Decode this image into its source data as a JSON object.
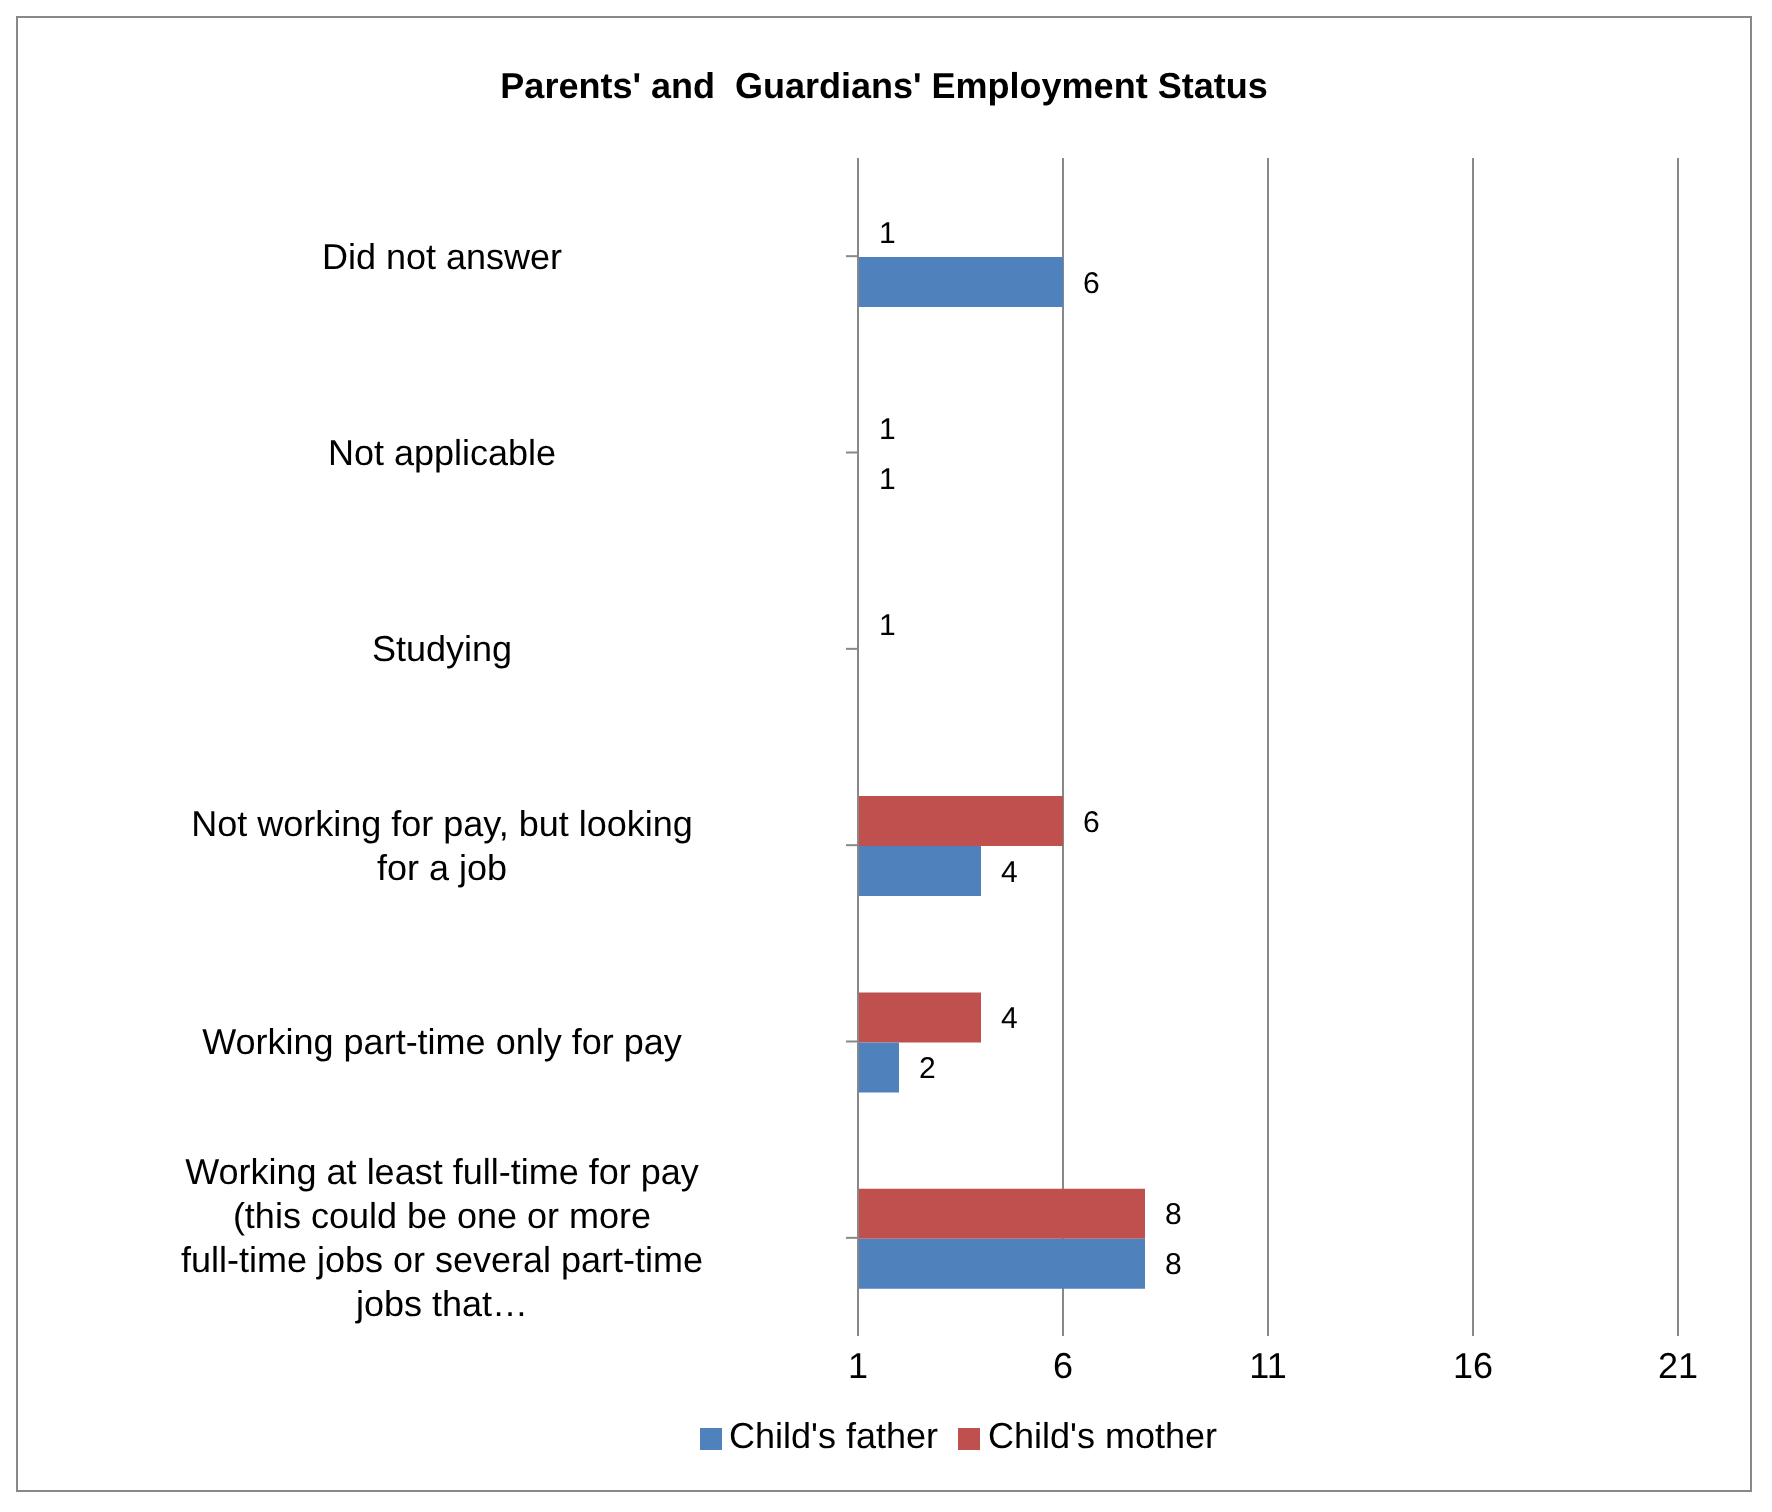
{
  "chart_data": {
    "type": "bar",
    "orientation": "horizontal",
    "title": "Parents' and  Guardians' Employment Status",
    "categories": [
      "Did not answer",
      "Not applicable",
      "Studying",
      "Not working for pay, but looking for a job",
      "Working part-time only for pay",
      "Working at least full-time for pay (this could be one or more full-time jobs or several part-time jobs that…"
    ],
    "series": [
      {
        "name": "Child's mother",
        "color": "#c0504d",
        "values": [
          1,
          1,
          1,
          6,
          4,
          8
        ]
      },
      {
        "name": "Child's father",
        "color": "#4f81bd",
        "values": [
          6,
          1,
          null,
          4,
          2,
          8
        ]
      }
    ],
    "xlim": [
      1,
      21
    ],
    "xticks": [
      1,
      6,
      11,
      16,
      21
    ],
    "grid": "x",
    "legend": "bottom",
    "data_labels": true
  }
}
